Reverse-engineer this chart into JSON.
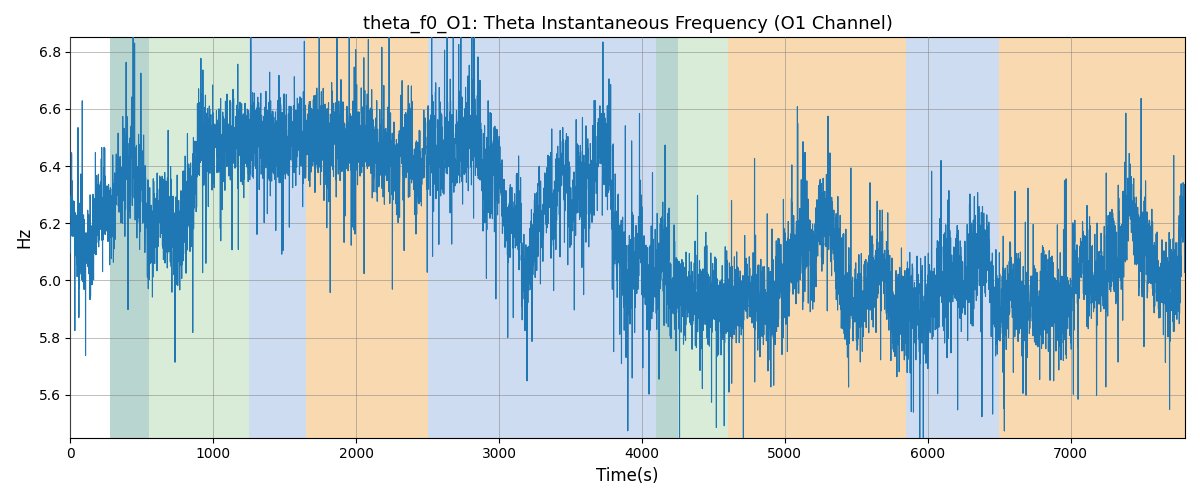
{
  "title": "theta_f0_O1: Theta Instantaneous Frequency (O1 Channel)",
  "xlabel": "Time(s)",
  "ylabel": "Hz",
  "xlim": [
    0,
    7800
  ],
  "ylim": [
    5.45,
    6.85
  ],
  "yticks": [
    5.6,
    5.8,
    6.0,
    6.2,
    6.4,
    6.6,
    6.8
  ],
  "xticks": [
    0,
    1000,
    2000,
    3000,
    4000,
    5000,
    6000,
    7000
  ],
  "line_color": "#1f77b4",
  "line_width": 0.8,
  "seed": 42,
  "n_points": 7800,
  "background_regions": [
    {
      "xmin": 280,
      "xmax": 550,
      "color": "#aec6e8",
      "alpha": 0.6
    },
    {
      "xmin": 280,
      "xmax": 1250,
      "color": "#90c990",
      "alpha": 0.35
    },
    {
      "xmin": 1250,
      "xmax": 1650,
      "color": "#aec6e8",
      "alpha": 0.6
    },
    {
      "xmin": 1650,
      "xmax": 2500,
      "color": "#f5c07a",
      "alpha": 0.6
    },
    {
      "xmin": 2500,
      "xmax": 4100,
      "color": "#aec6e8",
      "alpha": 0.6
    },
    {
      "xmin": 4100,
      "xmax": 4250,
      "color": "#aec6e8",
      "alpha": 0.6
    },
    {
      "xmin": 4100,
      "xmax": 4600,
      "color": "#90c990",
      "alpha": 0.35
    },
    {
      "xmin": 4600,
      "xmax": 5850,
      "color": "#f5c07a",
      "alpha": 0.6
    },
    {
      "xmin": 5850,
      "xmax": 6500,
      "color": "#aec6e8",
      "alpha": 0.6
    },
    {
      "xmin": 6500,
      "xmax": 7800,
      "color": "#f5c07a",
      "alpha": 0.6
    }
  ],
  "figsize": [
    12.0,
    5.0
  ],
  "dpi": 100
}
